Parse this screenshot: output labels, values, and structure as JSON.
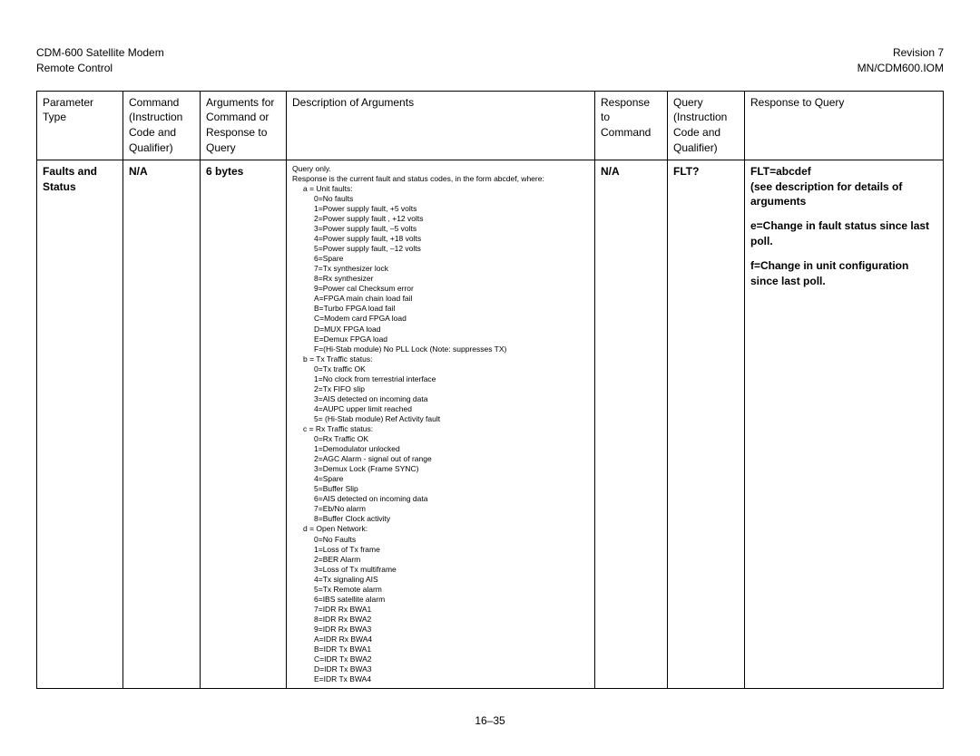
{
  "header": {
    "title": "CDM-600 Satellite Modem",
    "subtitle": "Remote Control",
    "revision": "Revision 7",
    "docid": "MN/CDM600.IOM"
  },
  "table": {
    "headers": {
      "param": "Parameter Type",
      "cmd": "Command (Instruction Code and Qualifier)",
      "args": "Arguments for Command or Response to Query",
      "desc": "Description of Arguments",
      "resp": "Response to Command",
      "query": "Query (Instruction Code and Qualifier)",
      "rtq": "Response to Query"
    },
    "row": {
      "param": "Faults and Status",
      "cmd": "N/A",
      "args": "6 bytes",
      "resp": "N/A",
      "query": "FLT?",
      "rtq_line1": "FLT=abcdef",
      "rtq_line2": "(see description for details of arguments",
      "rtq_line3": "e=Change in fault status since last poll.",
      "rtq_line4": "f=Change in unit configuration since last poll."
    },
    "desc": {
      "top1": "Query only.",
      "top2": "Response is the current fault and status codes, in the form abcdef, where:",
      "a_head": "a = Unit faults:",
      "a": [
        "0=No faults",
        "1=Power supply fault, +5 volts",
        "2=Power supply fault , +12 volts",
        "3=Power supply fault, –5 volts",
        "4=Power supply fault, +18 volts",
        "5=Power supply fault, –12 volts",
        "6=Spare",
        "7=Tx synthesizer lock",
        "8=Rx synthesizer",
        "9=Power cal Checksum error",
        "A=FPGA main chain load fail",
        "B=Turbo FPGA load fail",
        "C=Modem card FPGA load",
        "D=MUX FPGA load",
        "E=Demux FPGA load",
        "F=(Hi-Stab module) No PLL Lock (Note: suppresses TX)"
      ],
      "b_head": "b = Tx Traffic status:",
      "b": [
        "0=Tx traffic OK",
        "1=No clock from terrestrial interface",
        "2=Tx FIFO slip",
        "3=AIS detected on incoming data",
        "4=AUPC upper limit reached",
        "5= (Hi-Stab module) Ref Activity fault"
      ],
      "c_head": "c = Rx Traffic status:",
      "c": [
        "0=Rx Traffic OK",
        "1=Demodulator unlocked",
        "2=AGC Alarm - signal out of range",
        "3=Demux Lock (Frame SYNC)",
        "4=Spare",
        "5=Buffer Slip",
        "6=AIS detected on incoming data",
        "7=Eb/No alarm",
        "8=Buffer Clock activity"
      ],
      "d_head": "d = Open Network:",
      "d": [
        "0=No Faults",
        "1=Loss of Tx frame",
        "2=BER Alarm",
        "3=Loss of Tx multiframe",
        "4=Tx signaling AIS",
        "5=Tx Remote alarm",
        "6=IBS satellite alarm",
        "7=IDR Rx BWA1",
        "8=IDR Rx BWA2",
        "9=IDR Rx BWA3",
        "A=IDR Rx BWA4",
        "B=IDR Tx BWA1",
        "C=IDR Tx BWA2",
        "D=IDR Tx BWA3",
        "E=IDR Tx BWA4"
      ]
    }
  },
  "footer": "16–35"
}
